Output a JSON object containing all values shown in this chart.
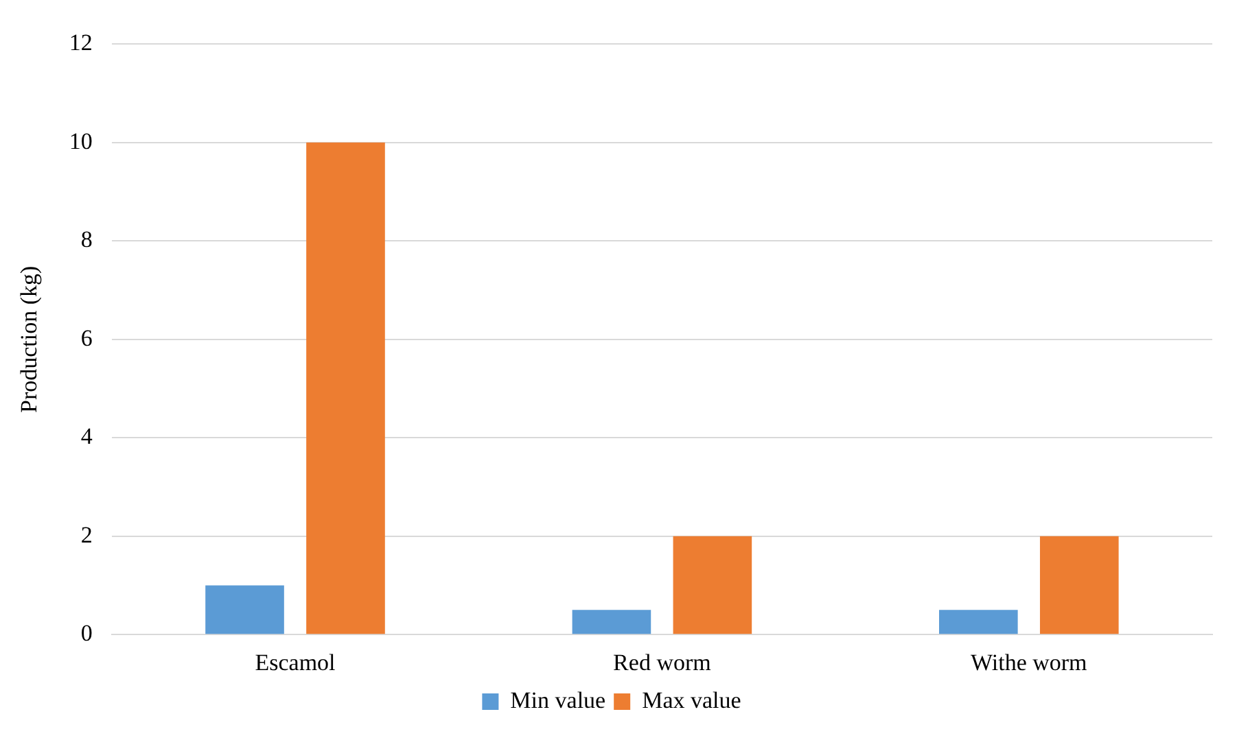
{
  "chart_data": {
    "type": "bar",
    "ylabel": "Production (kg)",
    "categories": [
      "Escamol",
      "Red worm",
      "Withe worm"
    ],
    "series": [
      {
        "name": "Min value",
        "color": "#5b9bd5",
        "values": [
          1,
          0.5,
          0.5
        ]
      },
      {
        "name": "Max value",
        "color": "#ed7d31",
        "values": [
          10,
          2,
          2
        ]
      }
    ],
    "ylim": [
      0,
      12
    ],
    "yticks": [
      0,
      2,
      4,
      6,
      8,
      10,
      12
    ],
    "grid": "y",
    "legend": "bottom"
  }
}
